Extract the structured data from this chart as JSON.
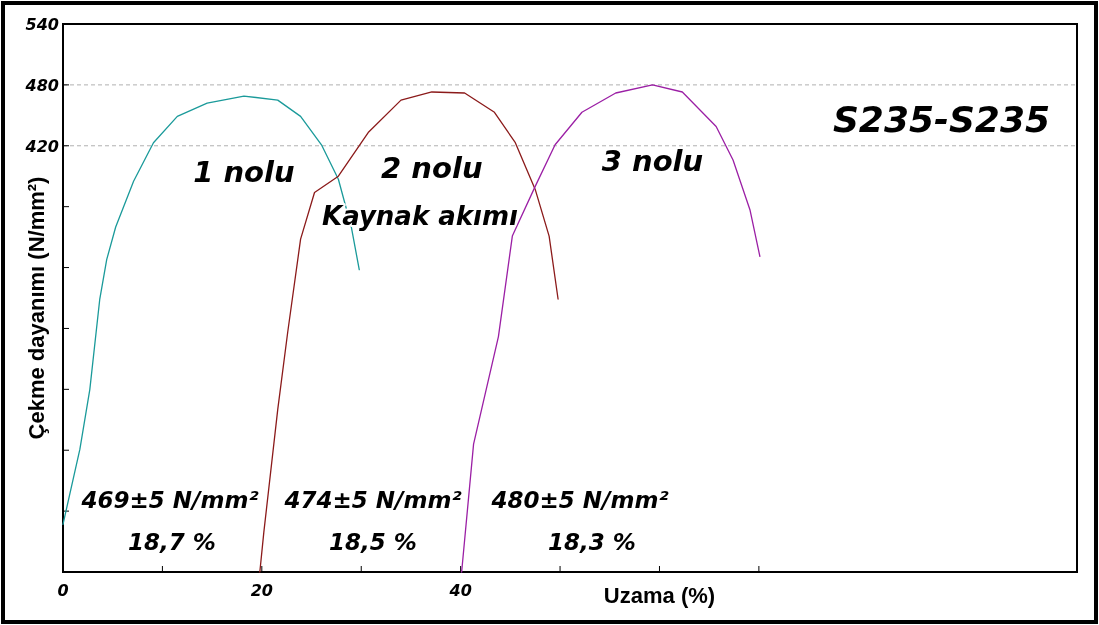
{
  "chart_data": {
    "type": "line",
    "title": "S235-S235",
    "xlabel": "Uzama (%)",
    "ylabel": "Çekme dayanımı (N/mm²)",
    "xlim": [
      0,
      102
    ],
    "ylim": [
      0,
      540
    ],
    "xticks": [
      0,
      {
        "value": 10,
        "label": null
      },
      20,
      {
        "value": 30,
        "label": null
      },
      40,
      {
        "value": 50,
        "label": null
      },
      {
        "value": 60,
        "label": null
      },
      {
        "value": 70,
        "label": null
      }
    ],
    "yticks": [
      {
        "value": 60,
        "label": null
      },
      {
        "value": 120,
        "label": null
      },
      {
        "value": 180,
        "label": null
      },
      {
        "value": 240,
        "label": null
      },
      {
        "value": 300,
        "label": null
      },
      {
        "value": 360,
        "label": null
      },
      420,
      480,
      540
    ],
    "ref_lines": [
      {
        "axis": "y",
        "value": 480,
        "color": "#b0b0b0",
        "line_style": "dashed"
      },
      {
        "axis": "y",
        "value": 420,
        "color": "#b0b0b0",
        "line_style": "dashed"
      }
    ],
    "marker": "none",
    "line_style": "solid",
    "grid": false,
    "series": [
      {
        "name": "1 nolu",
        "color": "#1a9a9a",
        "x": [
          0,
          1.7,
          2.7,
          3.7,
          4.4,
          5.3,
          7.1,
          9.1,
          11.5,
          14.5,
          18.2,
          21.6,
          23.9,
          26,
          27.7,
          29,
          29.8
        ],
        "values": [
          47,
          121,
          180,
          269,
          308,
          340,
          385,
          423,
          449,
          462,
          469,
          465,
          449,
          421,
          387,
          340,
          298
        ]
      },
      {
        "name": "2 nolu",
        "color": "#8b1a1a",
        "x": [
          19.8,
          20.2,
          21.6,
          22.6,
          23.9,
          25.3,
          27.7,
          30.7,
          34,
          37.1,
          40.4,
          43.4,
          45.5,
          47.5,
          48.9,
          49.8
        ],
        "values": [
          0,
          39,
          160,
          236,
          328,
          374,
          390,
          433,
          465,
          473,
          472,
          453,
          423,
          377,
          331,
          269
        ]
      },
      {
        "name": "3 nolu",
        "color": "#9b1fa5",
        "x": [
          40.1,
          41.3,
          43.8,
          45.2,
          47.5,
          49.5,
          52.2,
          55.6,
          59.3,
          62.3,
          65.7,
          67.4,
          69.1,
          70.1
        ],
        "values": [
          0,
          126,
          232,
          331,
          380,
          421,
          453,
          472,
          480,
          473,
          439,
          406,
          357,
          311
        ]
      }
    ],
    "annotations": [
      "Kaynak akımı",
      "469±5 N/mm²",
      "18,7 %",
      "474±5 N/mm²",
      "18,5 %",
      "480±5 N/mm²",
      "18,3 %"
    ]
  }
}
